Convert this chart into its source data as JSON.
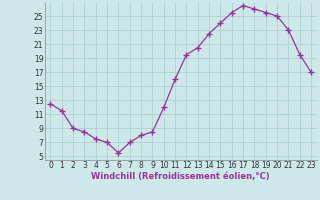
{
  "x": [
    0,
    1,
    2,
    3,
    4,
    5,
    6,
    7,
    8,
    9,
    10,
    11,
    12,
    13,
    14,
    15,
    16,
    17,
    18,
    19,
    20,
    21,
    22,
    23
  ],
  "y": [
    12.5,
    11.5,
    9.0,
    8.5,
    7.5,
    7.0,
    5.5,
    7.0,
    8.0,
    8.5,
    12.0,
    16.0,
    19.5,
    20.5,
    22.5,
    24.0,
    25.5,
    26.5,
    26.0,
    25.5,
    25.0,
    23.0,
    19.5,
    17.0
  ],
  "line_color": "#993399",
  "marker": "+",
  "marker_size": 4,
  "marker_edge_width": 1.0,
  "line_width": 0.9,
  "bg_color": "#cce8e8",
  "grid_color": "#aacccc",
  "xlabel": "Windchill (Refroidissement éolien,°C)",
  "yticks": [
    5,
    7,
    9,
    11,
    13,
    15,
    17,
    19,
    21,
    23,
    25
  ],
  "xticks": [
    0,
    1,
    2,
    3,
    4,
    5,
    6,
    7,
    8,
    9,
    10,
    11,
    12,
    13,
    14,
    15,
    16,
    17,
    18,
    19,
    20,
    21,
    22,
    23
  ],
  "ylim": [
    4.5,
    27.0
  ],
  "xlim": [
    -0.5,
    23.5
  ],
  "xlabel_fontsize": 6.0,
  "tick_fontsize": 5.5
}
